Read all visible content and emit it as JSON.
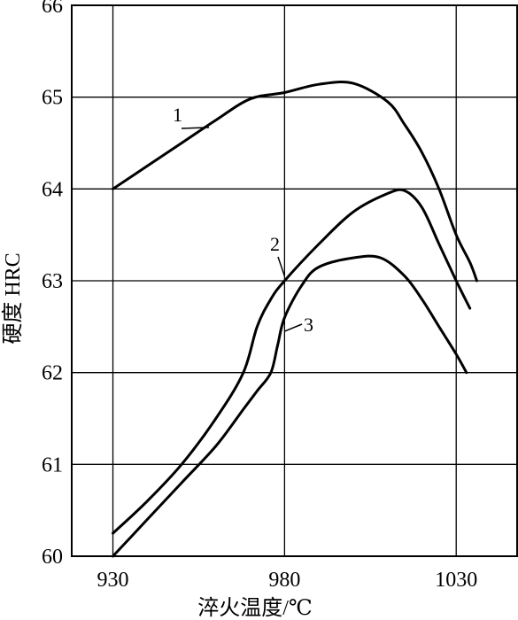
{
  "chart_data": {
    "type": "line",
    "title": "",
    "xlabel": "淬火温度/℃",
    "ylabel": "硬度 HRC",
    "xlim": [
      918,
      1048
    ],
    "ylim": [
      60,
      66
    ],
    "x_ticks": [
      930,
      980,
      1030
    ],
    "x_tick_labels": [
      "930",
      "980",
      "1030"
    ],
    "y_ticks": [
      60,
      61,
      62,
      63,
      64,
      65,
      66
    ],
    "y_tick_labels": [
      "60",
      "61",
      "62",
      "63",
      "64",
      "65",
      "66"
    ],
    "grid": true,
    "legend": "none",
    "series": [
      {
        "label": "1",
        "x": [
          930,
          940,
          950,
          960,
          970,
          980,
          990,
          1000,
          1010,
          1015,
          1020,
          1025,
          1030,
          1034,
          1036
        ],
        "y": [
          64.0,
          64.25,
          64.5,
          64.75,
          64.98,
          65.05,
          65.14,
          65.15,
          64.95,
          64.7,
          64.4,
          64.0,
          63.5,
          63.2,
          63.0
        ]
      },
      {
        "label": "2",
        "x": [
          930,
          940,
          950,
          960,
          968,
          972,
          976,
          980,
          990,
          1000,
          1010,
          1015,
          1020,
          1025,
          1030,
          1034
        ],
        "y": [
          60.25,
          60.6,
          61.0,
          61.5,
          62.0,
          62.5,
          62.8,
          63.0,
          63.4,
          63.75,
          63.95,
          63.98,
          63.8,
          63.4,
          63.0,
          62.7
        ]
      },
      {
        "label": "3",
        "x": [
          930,
          940,
          950,
          960,
          968,
          972,
          976,
          978,
          980,
          985,
          990,
          1000,
          1008,
          1015,
          1020,
          1025,
          1030,
          1033
        ],
        "y": [
          60.0,
          60.4,
          60.8,
          61.2,
          61.6,
          61.8,
          62.0,
          62.3,
          62.6,
          62.95,
          63.15,
          63.25,
          63.25,
          63.05,
          62.8,
          62.5,
          62.2,
          62.0
        ]
      }
    ]
  }
}
